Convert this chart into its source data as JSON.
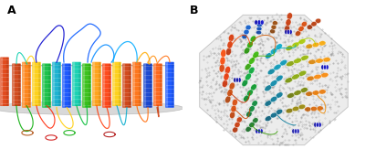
{
  "figure_width": 4.0,
  "figure_height": 1.75,
  "dpi": 100,
  "bg_color": "#ffffff",
  "label_A": "A",
  "label_B": "B",
  "label_fontsize": 9,
  "label_fontweight": "bold"
}
